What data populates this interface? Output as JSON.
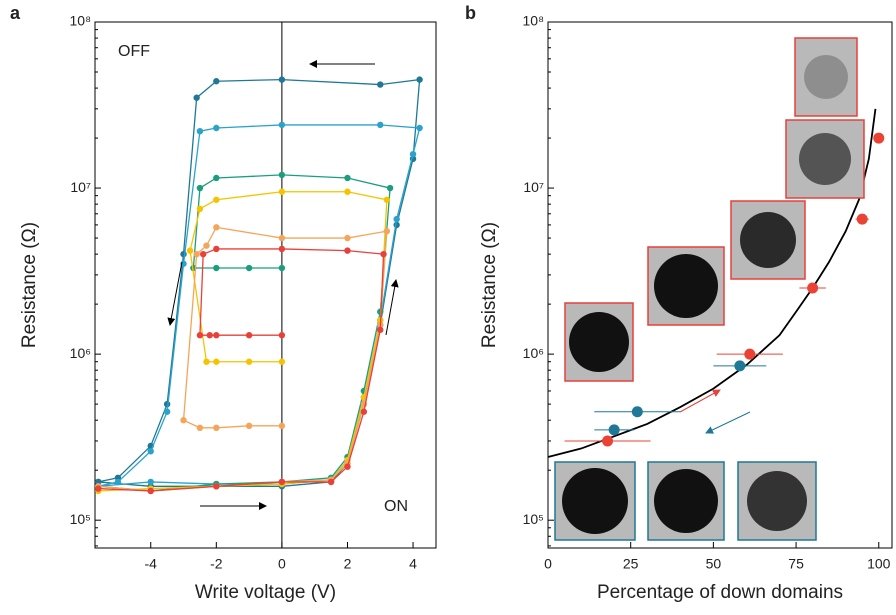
{
  "chart_data": [
    {
      "type": "line",
      "panel_label": "a",
      "xlabel": "Write voltage (V)",
      "ylabel": "Resistance (Ω)",
      "xlim": [
        -5.7,
        4.7
      ],
      "xticks": [
        -4,
        -2,
        0,
        2,
        4
      ],
      "ylim": [
        68000,
        100000000
      ],
      "log_y": true,
      "yticks": [
        {
          "value": 100000,
          "label": "10⁵"
        },
        {
          "value": 1000000,
          "label": "10⁶"
        },
        {
          "value": 10000000,
          "label": "10⁷"
        },
        {
          "value": 100000000,
          "label": "10⁸"
        }
      ],
      "zero_line": true,
      "annotations": [
        "OFF",
        "ON"
      ],
      "series": [
        {
          "color": "#1f7896",
          "style": "line+markers",
          "x": [
            -5.6,
            -4,
            -2,
            0,
            1.5,
            2,
            2.5,
            3,
            3.5,
            4,
            4.2,
            3,
            0,
            -2,
            -2.6,
            -3,
            -3.5,
            -4,
            -5,
            -5.6
          ],
          "values": [
            170000,
            160000,
            160000,
            160000,
            170000,
            220000,
            500000,
            1500000,
            6000000,
            15000000,
            45000000,
            42000000,
            45000000,
            44000000,
            35000000,
            4000000,
            500000,
            280000,
            180000,
            170000
          ]
        },
        {
          "color": "#2aa3cc",
          "style": "line+markers",
          "x": [
            -5.6,
            -4,
            -2,
            0,
            1.5,
            2,
            2.5,
            3,
            3.5,
            4,
            4.2,
            3,
            0,
            -2,
            -2.5,
            -3,
            -3.5,
            -4,
            -5,
            -5.6
          ],
          "values": [
            160000,
            170000,
            165000,
            165000,
            175000,
            230000,
            550000,
            1600000,
            6500000,
            16000000,
            23000000,
            24000000,
            24000000,
            23000000,
            22000000,
            3500000,
            450000,
            260000,
            170000,
            160000
          ]
        },
        {
          "color": "#1a9e7e",
          "style": "line+markers",
          "x": [
            -5.6,
            -4,
            -2,
            0,
            1.5,
            2,
            2.5,
            3,
            3.3,
            2,
            0,
            -2,
            -2.5,
            -2.7,
            -2,
            -1,
            0
          ],
          "values": [
            160000,
            150000,
            165000,
            170000,
            180000,
            240000,
            600000,
            1800000,
            10000000,
            11500000,
            12000000,
            11500000,
            10000000,
            3300000,
            3300000,
            3300000,
            3300000
          ]
        },
        {
          "color": "#f5c400",
          "style": "line+markers",
          "x": [
            -5.6,
            -4,
            -2,
            0,
            1.5,
            2,
            2.5,
            3,
            3.2,
            2,
            0,
            -2,
            -2.5,
            -2.8,
            -2.3,
            -2,
            -1,
            0
          ],
          "values": [
            150000,
            155000,
            160000,
            165000,
            175000,
            230000,
            550000,
            1600000,
            8500000,
            9500000,
            9500000,
            8500000,
            7500000,
            4200000,
            900000,
            900000,
            900000,
            900000
          ]
        },
        {
          "color": "#f5a55a",
          "style": "line+markers",
          "x": [
            -5.6,
            -4,
            -2,
            0,
            1.5,
            2,
            2.5,
            3,
            3.2,
            2,
            0,
            -2,
            -2.3,
            -2.6,
            -3,
            -2.5,
            -2,
            -1,
            0
          ],
          "values": [
            160000,
            150000,
            160000,
            170000,
            175000,
            220000,
            500000,
            1500000,
            5500000,
            5000000,
            5000000,
            5800000,
            4500000,
            4000000,
            400000,
            360000,
            360000,
            370000,
            370000
          ]
        },
        {
          "color": "#e8403a",
          "style": "line+markers",
          "x": [
            -5.6,
            -4,
            -2,
            0,
            1.5,
            2,
            2.5,
            3,
            3.1,
            2,
            0,
            -2,
            -2.4,
            -2.5,
            -2.2,
            -2,
            -1,
            0
          ],
          "values": [
            155000,
            150000,
            160000,
            170000,
            170000,
            210000,
            450000,
            1400000,
            4000000,
            4200000,
            4300000,
            4300000,
            4000000,
            1300000,
            1300000,
            1300000,
            1300000,
            1300000
          ]
        }
      ]
    },
    {
      "type": "line",
      "panel_label": "b",
      "xlabel": "Percentage of down domains",
      "ylabel": "Resistance (Ω)",
      "xlim": [
        0,
        104
      ],
      "xticks": [
        0,
        25,
        50,
        75,
        100
      ],
      "ylim": [
        68000,
        100000000
      ],
      "log_y": true,
      "yticks": [
        {
          "value": 100000,
          "label": "10⁵"
        },
        {
          "value": 1000000,
          "label": "10⁶"
        },
        {
          "value": 10000000,
          "label": "10⁷"
        },
        {
          "value": 100000000,
          "label": "10⁸"
        }
      ],
      "series": [
        {
          "color": "#000000",
          "style": "line",
          "x": [
            0,
            10,
            20,
            30,
            40,
            50,
            60,
            70,
            75,
            80,
            85,
            90,
            94,
            97,
            99
          ],
          "values": [
            240000,
            270000,
            320000,
            380000,
            480000,
            620000,
            860000,
            1300000,
            1800000,
            2500000,
            3600000,
            5500000,
            8500000,
            15000000,
            30000000
          ]
        },
        {
          "color": "#ea4335",
          "style": "markers",
          "x": [
            18,
            61,
            80,
            95,
            100
          ],
          "xerr": [
            13,
            10,
            4,
            2,
            1
          ],
          "values": [
            300000,
            1000000,
            2500000,
            6500000,
            20000000
          ]
        },
        {
          "color": "#1f7896",
          "style": "markers",
          "x": [
            20,
            27,
            58
          ],
          "xerr": [
            6,
            13,
            8
          ],
          "values": [
            350000,
            450000,
            850000
          ]
        }
      ]
    }
  ]
}
